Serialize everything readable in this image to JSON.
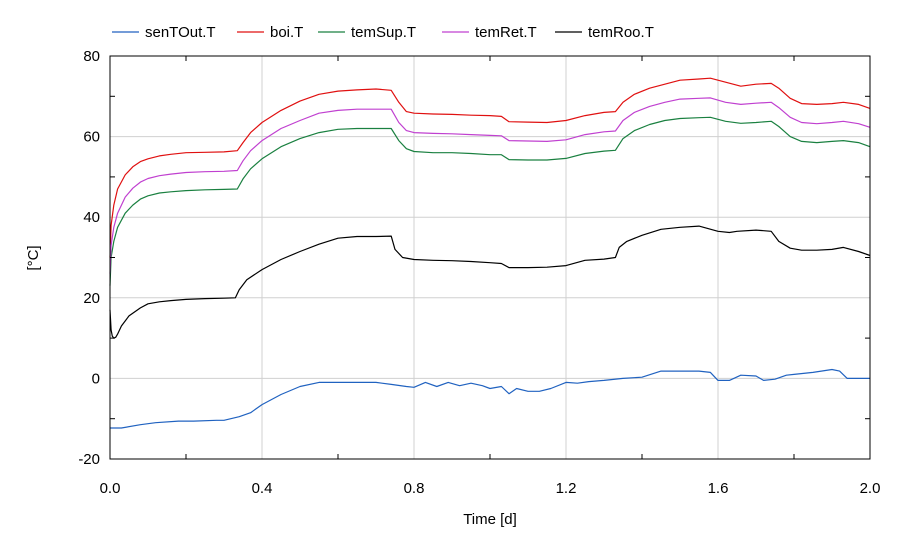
{
  "chart_data": {
    "type": "line",
    "xlabel": "Time [d]",
    "ylabel": "[°C]",
    "xlim": [
      0,
      2
    ],
    "ylim": [
      -20,
      80
    ],
    "xticks": [
      0.0,
      0.4,
      0.8,
      1.2,
      1.6,
      2.0
    ],
    "xtick_labels": [
      "0.0",
      "0.4",
      "0.8",
      "1.2",
      "1.6",
      "2.0"
    ],
    "yticks": [
      -20,
      0,
      20,
      40,
      60,
      80
    ],
    "ytick_labels": [
      "-20",
      "0",
      "20",
      "40",
      "60",
      "80"
    ],
    "grid": true,
    "legend_position": "top",
    "series": [
      {
        "name": "senTOut.T",
        "color": "#2062c0",
        "x": [
          0,
          0.03,
          0.08,
          0.12,
          0.18,
          0.22,
          0.28,
          0.3,
          0.34,
          0.37,
          0.4,
          0.45,
          0.5,
          0.55,
          0.6,
          0.65,
          0.7,
          0.74,
          0.78,
          0.8,
          0.83,
          0.86,
          0.89,
          0.92,
          0.95,
          0.98,
          1.0,
          1.03,
          1.05,
          1.07,
          1.1,
          1.13,
          1.16,
          1.2,
          1.23,
          1.26,
          1.3,
          1.35,
          1.4,
          1.45,
          1.5,
          1.55,
          1.58,
          1.6,
          1.63,
          1.66,
          1.7,
          1.72,
          1.75,
          1.78,
          1.8,
          1.85,
          1.9,
          1.92,
          1.94,
          1.96,
          2.0
        ],
        "y": [
          -12.3,
          -12.3,
          -11.5,
          -11,
          -10.6,
          -10.6,
          -10.4,
          -10.4,
          -9.5,
          -8.5,
          -6.5,
          -4,
          -2,
          -1,
          -1,
          -1,
          -1,
          -1.5,
          -2,
          -2.2,
          -1,
          -2,
          -1,
          -1.8,
          -1.2,
          -1.8,
          -2.5,
          -2,
          -3.8,
          -2.5,
          -3.2,
          -3.2,
          -2.5,
          -1,
          -1.2,
          -0.8,
          -0.5,
          0,
          0.3,
          1.8,
          1.8,
          1.8,
          1.5,
          -0.5,
          -0.5,
          0.8,
          0.6,
          -0.5,
          -0.2,
          0.8,
          1,
          1.5,
          2.2,
          1.8,
          0,
          0,
          0
        ]
      },
      {
        "name": "boi.T",
        "color": "#e01010",
        "x": [
          0,
          0.003,
          0.01,
          0.02,
          0.04,
          0.06,
          0.08,
          0.1,
          0.13,
          0.16,
          0.2,
          0.25,
          0.3,
          0.335,
          0.35,
          0.37,
          0.4,
          0.45,
          0.5,
          0.55,
          0.6,
          0.65,
          0.7,
          0.74,
          0.76,
          0.78,
          0.8,
          0.85,
          0.9,
          0.95,
          1.0,
          1.03,
          1.05,
          1.1,
          1.15,
          1.2,
          1.25,
          1.3,
          1.33,
          1.35,
          1.38,
          1.42,
          1.46,
          1.5,
          1.55,
          1.58,
          1.62,
          1.66,
          1.7,
          1.74,
          1.76,
          1.79,
          1.82,
          1.86,
          1.9,
          1.93,
          1.97,
          2.0
        ],
        "y": [
          30,
          38,
          43,
          47,
          50.5,
          52.5,
          53.8,
          54.5,
          55.2,
          55.6,
          56,
          56.1,
          56.2,
          56.5,
          58.5,
          61,
          63.5,
          66.5,
          68.8,
          70.5,
          71.3,
          71.6,
          71.8,
          71.5,
          68.5,
          66.2,
          65.8,
          65.6,
          65.5,
          65.3,
          65.2,
          65,
          63.7,
          63.6,
          63.5,
          64,
          65.2,
          66,
          66.2,
          68.5,
          70.5,
          72,
          73,
          74,
          74.3,
          74.5,
          73.5,
          72.5,
          73,
          73.2,
          72,
          69.5,
          68.2,
          68,
          68.2,
          68.5,
          68,
          67
        ]
      },
      {
        "name": "temSup.T",
        "color": "#1a8040",
        "x": [
          0,
          0.003,
          0.01,
          0.02,
          0.04,
          0.06,
          0.08,
          0.1,
          0.13,
          0.16,
          0.2,
          0.25,
          0.3,
          0.335,
          0.35,
          0.37,
          0.4,
          0.45,
          0.5,
          0.55,
          0.6,
          0.65,
          0.7,
          0.74,
          0.76,
          0.78,
          0.8,
          0.85,
          0.9,
          0.95,
          1.0,
          1.03,
          1.05,
          1.1,
          1.15,
          1.2,
          1.25,
          1.3,
          1.33,
          1.35,
          1.38,
          1.42,
          1.46,
          1.5,
          1.55,
          1.58,
          1.62,
          1.66,
          1.7,
          1.74,
          1.76,
          1.79,
          1.82,
          1.86,
          1.9,
          1.93,
          1.97,
          2.0
        ],
        "y": [
          23,
          30,
          34,
          37.5,
          41,
          43,
          44.5,
          45.3,
          46,
          46.3,
          46.6,
          46.8,
          46.9,
          47,
          49.5,
          52,
          54.5,
          57.5,
          59.5,
          61,
          61.8,
          62,
          62,
          62,
          59,
          57,
          56.3,
          56,
          56,
          55.8,
          55.5,
          55.5,
          54.3,
          54.2,
          54.2,
          54.6,
          55.8,
          56.4,
          56.6,
          59.5,
          61.5,
          63,
          64,
          64.5,
          64.7,
          64.8,
          63.8,
          63.3,
          63.5,
          63.8,
          62.5,
          60,
          58.8,
          58.5,
          58.8,
          59,
          58.5,
          57.5
        ]
      },
      {
        "name": "temRet.T",
        "color": "#c040d0",
        "x": [
          0,
          0.003,
          0.01,
          0.02,
          0.04,
          0.06,
          0.08,
          0.1,
          0.13,
          0.16,
          0.2,
          0.25,
          0.3,
          0.335,
          0.35,
          0.37,
          0.4,
          0.45,
          0.5,
          0.55,
          0.6,
          0.65,
          0.7,
          0.74,
          0.76,
          0.78,
          0.8,
          0.85,
          0.9,
          0.95,
          1.0,
          1.03,
          1.05,
          1.1,
          1.15,
          1.2,
          1.25,
          1.3,
          1.33,
          1.35,
          1.38,
          1.42,
          1.46,
          1.5,
          1.55,
          1.58,
          1.62,
          1.66,
          1.7,
          1.74,
          1.76,
          1.79,
          1.82,
          1.86,
          1.9,
          1.93,
          1.97,
          2.0
        ],
        "y": [
          26,
          33,
          37.5,
          41,
          45,
          47.2,
          48.7,
          49.6,
          50.3,
          50.7,
          51.1,
          51.3,
          51.4,
          51.6,
          54,
          56.5,
          59,
          62,
          64,
          65.8,
          66.5,
          66.8,
          66.8,
          66.8,
          63.5,
          61.5,
          61,
          60.8,
          60.7,
          60.5,
          60.3,
          60.2,
          59,
          58.9,
          58.8,
          59.2,
          60.5,
          61.2,
          61.4,
          64,
          66,
          67.5,
          68.5,
          69.3,
          69.5,
          69.6,
          68.5,
          68,
          68.3,
          68.5,
          67.2,
          64.8,
          63.5,
          63.2,
          63.5,
          63.8,
          63.2,
          62.3
        ]
      },
      {
        "name": "temRoo.T",
        "color": "#000000",
        "x": [
          0,
          0.003,
          0.006,
          0.01,
          0.015,
          0.02,
          0.03,
          0.05,
          0.08,
          0.1,
          0.13,
          0.16,
          0.2,
          0.25,
          0.3,
          0.33,
          0.34,
          0.36,
          0.4,
          0.45,
          0.5,
          0.55,
          0.6,
          0.65,
          0.7,
          0.74,
          0.75,
          0.77,
          0.8,
          0.85,
          0.9,
          0.95,
          1.0,
          1.03,
          1.05,
          1.1,
          1.15,
          1.2,
          1.25,
          1.3,
          1.33,
          1.34,
          1.36,
          1.4,
          1.45,
          1.5,
          1.55,
          1.6,
          1.63,
          1.65,
          1.7,
          1.74,
          1.76,
          1.79,
          1.82,
          1.86,
          1.9,
          1.93,
          1.97,
          2.0
        ],
        "y": [
          17,
          12,
          10.5,
          10,
          10.2,
          11,
          13,
          15.5,
          17.5,
          18.5,
          19,
          19.3,
          19.6,
          19.8,
          19.9,
          20,
          22,
          24.5,
          27,
          29.5,
          31.5,
          33.3,
          34.8,
          35.2,
          35.2,
          35.3,
          32,
          30,
          29.5,
          29.3,
          29.2,
          29,
          28.7,
          28.5,
          27.5,
          27.5,
          27.6,
          28,
          29.3,
          29.6,
          30,
          32.5,
          34,
          35.5,
          37,
          37.5,
          37.8,
          36.5,
          36.2,
          36.5,
          36.8,
          36.5,
          34,
          32.3,
          31.8,
          31.8,
          32,
          32.5,
          31.5,
          30.5
        ]
      }
    ]
  }
}
